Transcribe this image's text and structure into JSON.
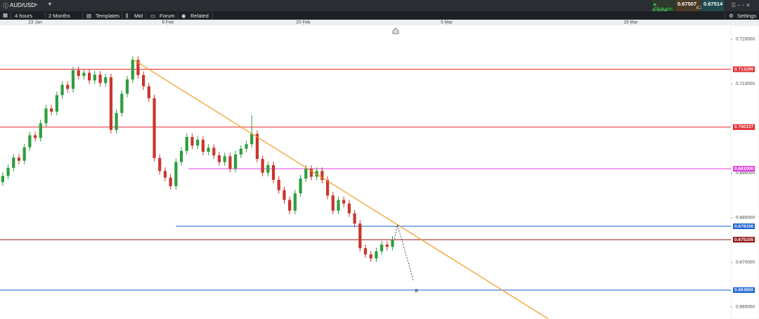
{
  "header": {
    "symbol": "AUD/USD"
  },
  "toolbar": {
    "interval": "4 hours",
    "range": "2 Months",
    "templates": "Templates",
    "mid": "Mid",
    "forum": "Forum",
    "related": "Related",
    "settings": "Settings"
  },
  "quote": {
    "change": "▲ 0.32%",
    "points": "22.1 pts",
    "bid": "0.67507",
    "ask": "0.67514",
    "spread": "0.7"
  },
  "chart_data": {
    "type": "candlestick",
    "xlim": [
      -0.5,
      134.5
    ],
    "xticks": [
      {
        "value": 6,
        "label": "23 Jan"
      },
      {
        "value": 30.5,
        "label": "6 Feb"
      },
      {
        "value": 55.5,
        "label": "20 Feb"
      },
      {
        "value": 82,
        "label": "5 Mar"
      },
      {
        "value": 116,
        "label": "19 Mar"
      }
    ],
    "ylim": [
      0.65732,
      0.72315
    ],
    "yticks": [
      {
        "value": 0.72,
        "label": "0.720000"
      },
      {
        "value": 0.71,
        "label": "0.710000"
      },
      {
        "value": 0.69,
        "label": "0.690000"
      },
      {
        "value": 0.68,
        "label": "0.680000"
      },
      {
        "value": 0.67,
        "label": "0.670000"
      },
      {
        "value": 0.66,
        "label": "0.660000"
      }
    ],
    "up_color": "#2e9e3e",
    "down_color": "#c8372d",
    "series": {
      "open": [
        0.688,
        0.6894,
        0.6912,
        0.6935,
        0.6928,
        0.6958,
        0.6985,
        0.6979,
        0.7012,
        0.7045,
        0.7038,
        0.7075,
        0.7098,
        0.7089,
        0.7131,
        0.7118,
        0.7125,
        0.7108,
        0.7121,
        0.7102,
        0.7115,
        0.6997,
        0.7035,
        0.7078,
        0.711,
        0.7154,
        0.712,
        0.7095,
        0.7068,
        0.6934,
        0.6905,
        0.689,
        0.6871,
        0.6925,
        0.695,
        0.6981,
        0.6962,
        0.6975,
        0.6948,
        0.6957,
        0.694,
        0.6925,
        0.6938,
        0.691,
        0.6942,
        0.6955,
        0.6965,
        0.6988,
        0.6932,
        0.6901,
        0.6918,
        0.6885,
        0.6862,
        0.684,
        0.6816,
        0.6855,
        0.6888,
        0.691,
        0.6892,
        0.6905,
        0.6885,
        0.685,
        0.6816,
        0.684,
        0.6832,
        0.681,
        0.6787,
        0.6732,
        0.6718,
        0.6709,
        0.6725,
        0.674,
        0.6735
      ],
      "high": [
        0.6902,
        0.692,
        0.6943,
        0.6943,
        0.6966,
        0.6993,
        0.6993,
        0.702,
        0.7053,
        0.7053,
        0.7083,
        0.7106,
        0.7106,
        0.7139,
        0.7139,
        0.7133,
        0.7133,
        0.7129,
        0.7129,
        0.7123,
        0.7123,
        0.7043,
        0.7086,
        0.7118,
        0.7162,
        0.7162,
        0.7128,
        0.7103,
        0.7076,
        0.6942,
        0.6913,
        0.6898,
        0.6933,
        0.6958,
        0.6989,
        0.6989,
        0.6983,
        0.6983,
        0.6965,
        0.6965,
        0.6948,
        0.6946,
        0.6946,
        0.695,
        0.6963,
        0.6973,
        0.703,
        0.6996,
        0.694,
        0.6926,
        0.6926,
        0.6893,
        0.687,
        0.6848,
        0.6863,
        0.6896,
        0.6918,
        0.6918,
        0.6913,
        0.6913,
        0.6893,
        0.6858,
        0.6848,
        0.6848,
        0.684,
        0.6818,
        0.6795,
        0.674,
        0.6726,
        0.6733,
        0.6748,
        0.6748,
        0.6759
      ],
      "low": [
        0.6872,
        0.6886,
        0.6904,
        0.692,
        0.692,
        0.695,
        0.6971,
        0.6971,
        0.7004,
        0.703,
        0.703,
        0.7067,
        0.7081,
        0.7081,
        0.711,
        0.711,
        0.71,
        0.71,
        0.7094,
        0.7094,
        0.6989,
        0.6989,
        0.7027,
        0.707,
        0.7102,
        0.7112,
        0.7087,
        0.706,
        0.6926,
        0.6897,
        0.6882,
        0.6863,
        0.6863,
        0.6917,
        0.6942,
        0.6954,
        0.6954,
        0.694,
        0.694,
        0.6932,
        0.6917,
        0.6917,
        0.6902,
        0.6902,
        0.6934,
        0.6947,
        0.6957,
        0.6924,
        0.6893,
        0.6893,
        0.6877,
        0.6854,
        0.6832,
        0.6808,
        0.6808,
        0.6847,
        0.688,
        0.6884,
        0.6884,
        0.6877,
        0.6842,
        0.6808,
        0.6808,
        0.6824,
        0.6802,
        0.6779,
        0.6724,
        0.671,
        0.6701,
        0.6701,
        0.6717,
        0.6727,
        0.6727
      ],
      "close": [
        0.6894,
        0.6912,
        0.6935,
        0.6928,
        0.6958,
        0.6985,
        0.6979,
        0.7012,
        0.7045,
        0.7038,
        0.7075,
        0.7098,
        0.7089,
        0.7131,
        0.7118,
        0.7125,
        0.7108,
        0.7121,
        0.7102,
        0.7115,
        0.6997,
        0.7035,
        0.7078,
        0.711,
        0.7154,
        0.712,
        0.7095,
        0.7068,
        0.6934,
        0.6905,
        0.689,
        0.6871,
        0.6925,
        0.695,
        0.6981,
        0.6962,
        0.6975,
        0.6948,
        0.6957,
        0.694,
        0.6925,
        0.6938,
        0.691,
        0.6942,
        0.6955,
        0.6965,
        0.6988,
        0.6932,
        0.6901,
        0.6918,
        0.6885,
        0.6862,
        0.684,
        0.6816,
        0.6855,
        0.6888,
        0.691,
        0.6892,
        0.6905,
        0.6885,
        0.685,
        0.6816,
        0.684,
        0.6832,
        0.681,
        0.6787,
        0.6732,
        0.6718,
        0.6709,
        0.6725,
        0.674,
        0.6735,
        0.6751
      ]
    },
    "levels": [
      {
        "value": 0.713299,
        "label": "0.713299",
        "color": "#e0262b"
      },
      {
        "value": 0.700337,
        "label": "0.700337",
        "color": "#e0262b"
      },
      {
        "value": 0.691,
        "label": "0.691000",
        "color": "#e040e0",
        "start": 34.3
      },
      {
        "value": 0.6781,
        "label": "0.678100",
        "color": "#1a5fd0",
        "start": 32
      },
      {
        "value": 0.675105,
        "label": "0.675105",
        "color": "#8f1414"
      },
      {
        "value": 0.6638,
        "label": "0.663800",
        "color": "#1a5fd0"
      }
    ],
    "trendline": {
      "color": "#f59a1b",
      "points": [
        [
          24.2,
          0.7154
        ],
        [
          100.8,
          0.65732
        ]
      ]
    },
    "projection": {
      "points": [
        [
          72.4,
          0.6753
        ],
        [
          72.9,
          0.6784
        ],
        [
          75.9,
          0.6658
        ]
      ],
      "label": "B"
    }
  }
}
